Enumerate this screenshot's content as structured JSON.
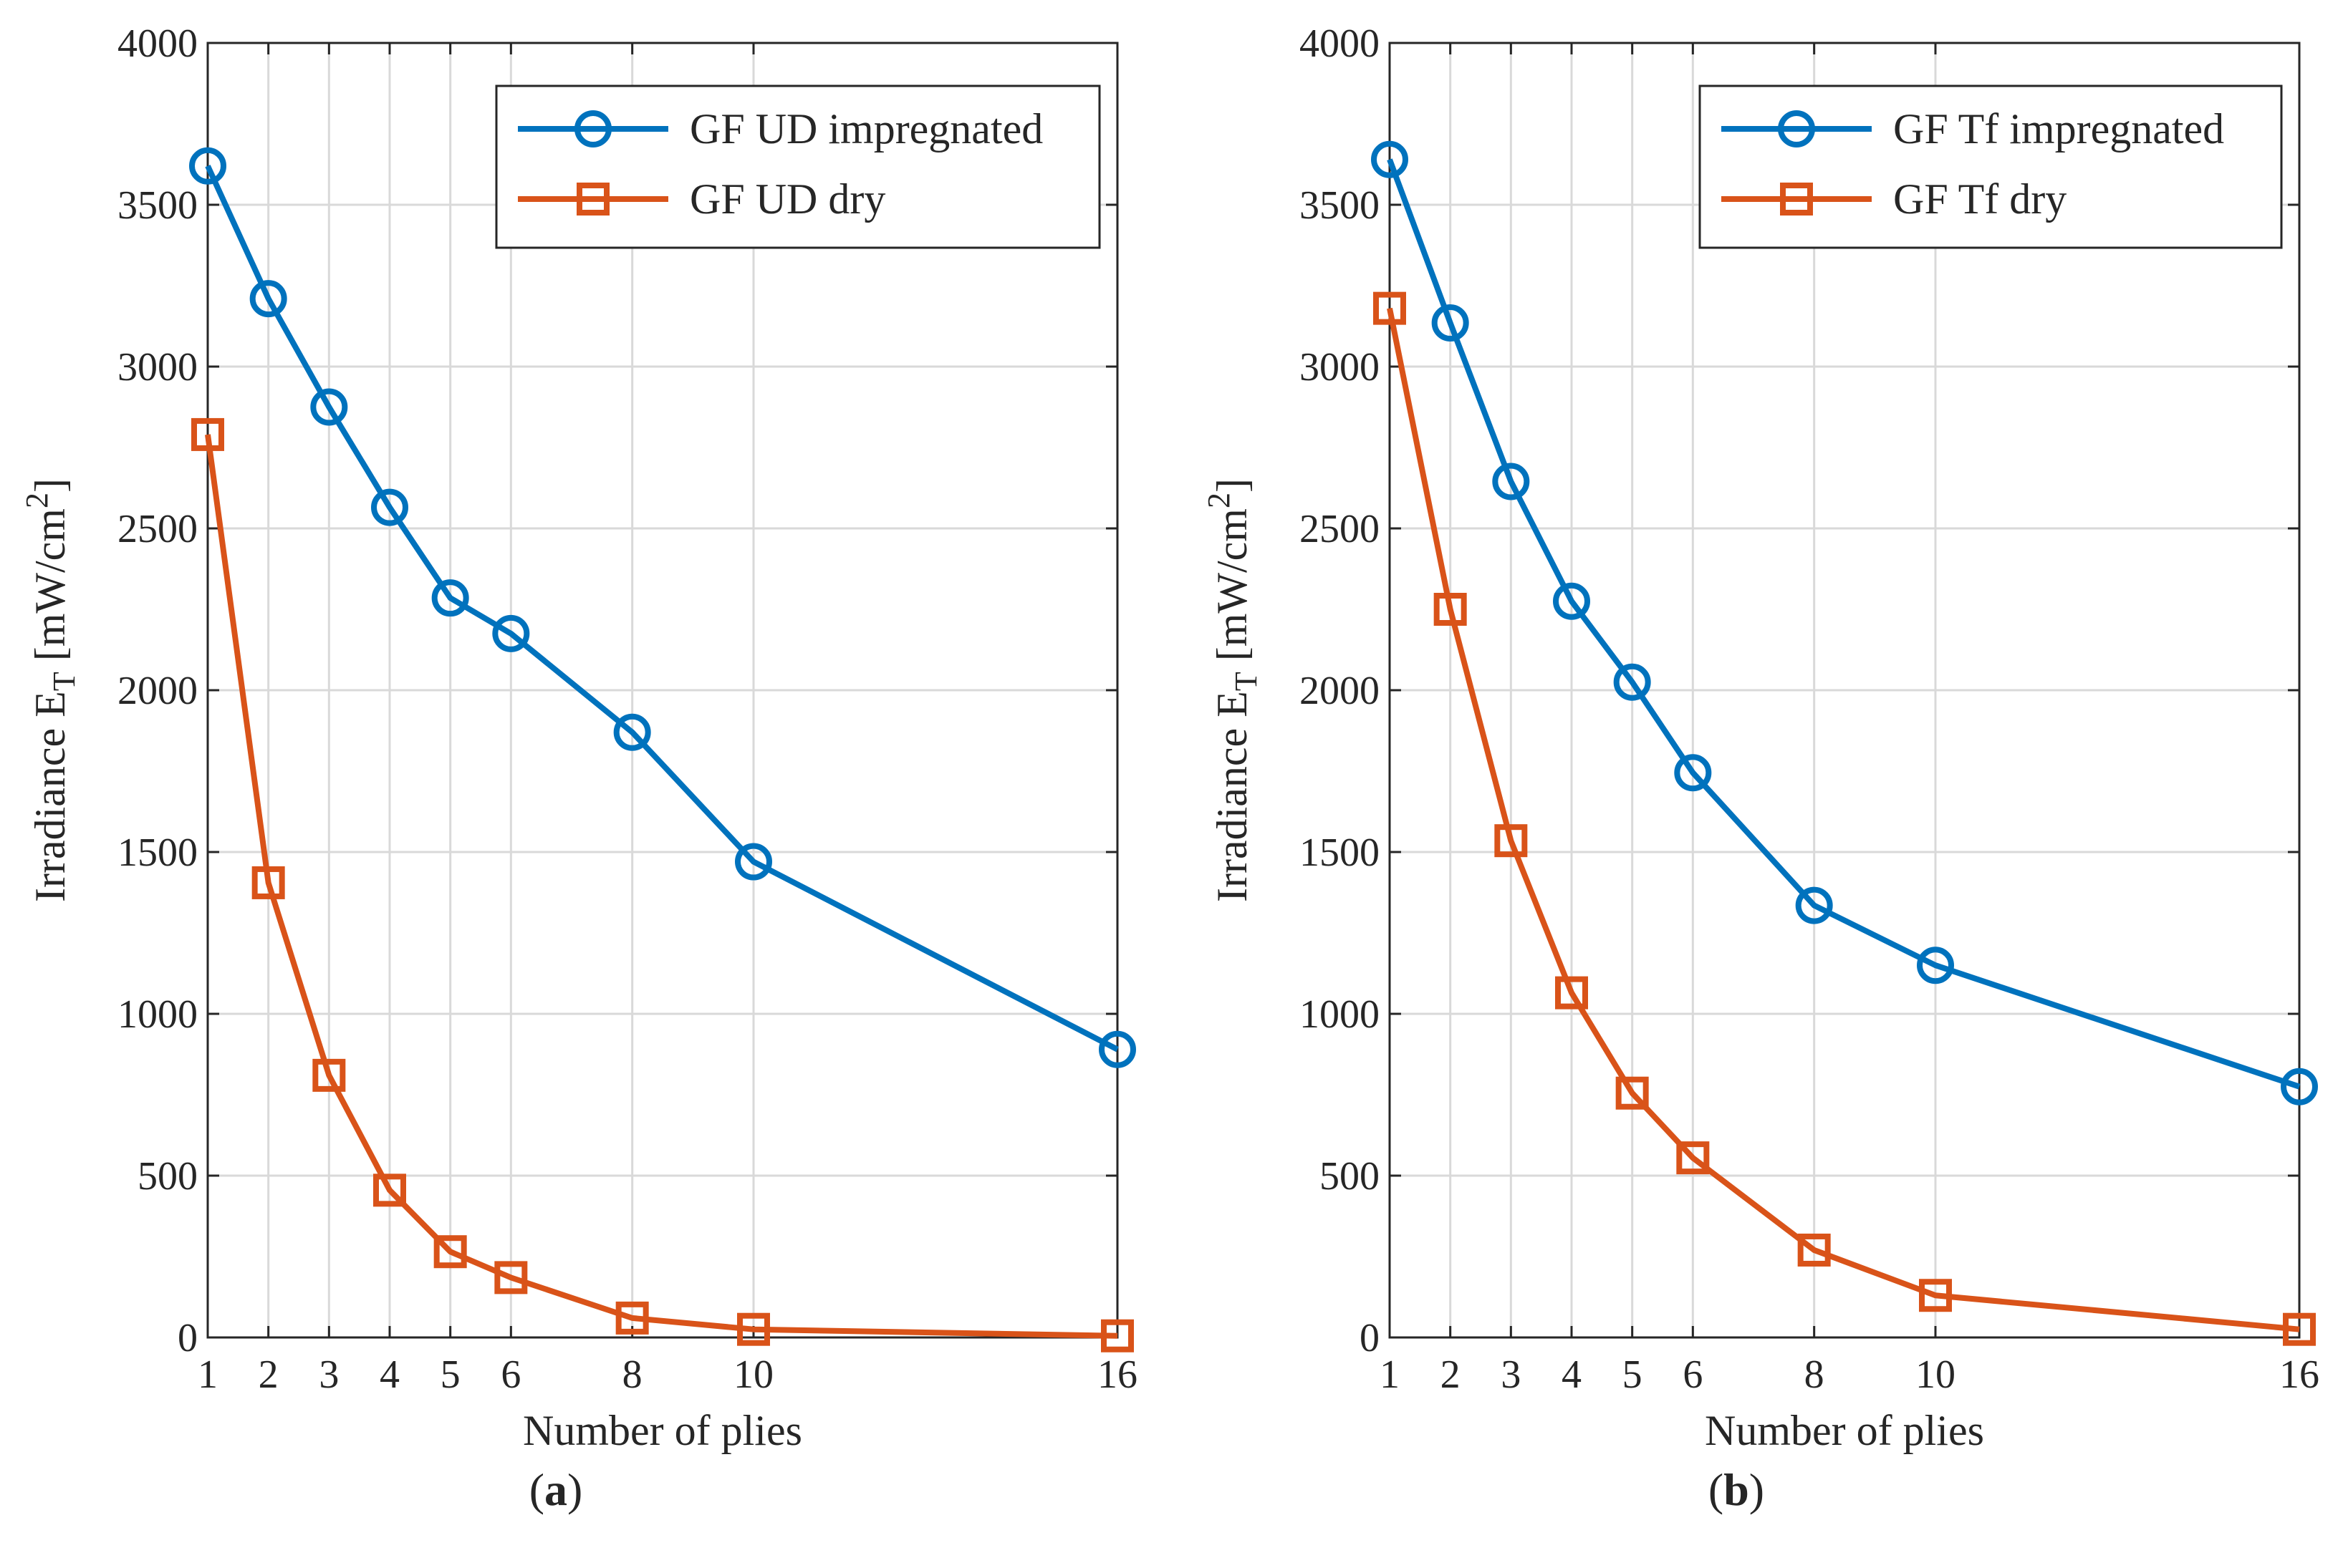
{
  "chart_data": [
    {
      "type": "line",
      "panel_label": "a",
      "xlabel": "Number of plies",
      "ylabel_prefix": "Irradiance E",
      "ylabel_subscript": "T",
      "ylabel_unit_open": " [mW/cm",
      "ylabel_unit_superscript": "2",
      "ylabel_unit_close": "]",
      "x_ticks": [
        1,
        2,
        3,
        4,
        5,
        6,
        8,
        10,
        16
      ],
      "y_ticks": [
        0,
        500,
        1000,
        1500,
        2000,
        2500,
        3000,
        3500,
        4000
      ],
      "xlim": [
        1,
        16
      ],
      "ylim": [
        0,
        4000
      ],
      "grid": true,
      "legend_position": "top-right",
      "series": [
        {
          "name": "GF UD impregnated",
          "marker": "circle",
          "color": "#0072BD",
          "x": [
            1,
            2,
            3,
            4,
            5,
            6,
            8,
            10,
            16
          ],
          "values": [
            3620,
            3210,
            2875,
            2565,
            2285,
            2175,
            1870,
            1470,
            890
          ]
        },
        {
          "name": "GF UD dry",
          "marker": "square",
          "color": "#D95319",
          "x": [
            1,
            2,
            3,
            4,
            5,
            6,
            8,
            10,
            16
          ],
          "values": [
            2790,
            1405,
            810,
            455,
            265,
            185,
            60,
            25,
            5
          ]
        }
      ]
    },
    {
      "type": "line",
      "panel_label": "b",
      "xlabel": "Number of plies",
      "ylabel_prefix": "Irradiance E",
      "ylabel_subscript": "T",
      "ylabel_unit_open": " [mW/cm",
      "ylabel_unit_superscript": "2",
      "ylabel_unit_close": "]",
      "x_ticks": [
        1,
        2,
        3,
        4,
        5,
        6,
        8,
        10,
        16
      ],
      "y_ticks": [
        0,
        500,
        1000,
        1500,
        2000,
        2500,
        3000,
        3500,
        4000
      ],
      "xlim": [
        1,
        16
      ],
      "ylim": [
        0,
        4000
      ],
      "grid": true,
      "legend_position": "top-right",
      "series": [
        {
          "name": "GF Tf impregnated",
          "marker": "circle",
          "color": "#0072BD",
          "x": [
            1,
            2,
            3,
            4,
            5,
            6,
            8,
            10,
            16
          ],
          "values": [
            3640,
            3135,
            2645,
            2275,
            2025,
            1745,
            1335,
            1150,
            775
          ]
        },
        {
          "name": "GF Tf dry",
          "marker": "square",
          "color": "#D95319",
          "x": [
            1,
            2,
            3,
            4,
            5,
            6,
            8,
            10,
            16
          ],
          "values": [
            3180,
            2250,
            1535,
            1065,
            755,
            555,
            270,
            130,
            25
          ]
        }
      ]
    }
  ]
}
